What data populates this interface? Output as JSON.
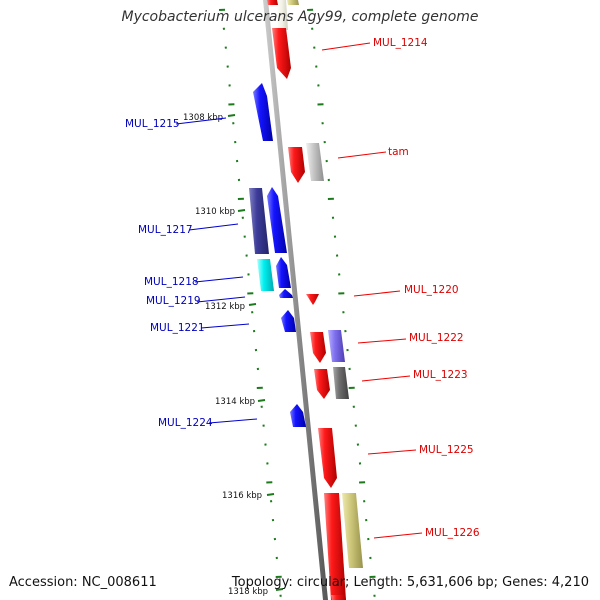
{
  "title": "Mycobacterium ulcerans Agy99, complete genome",
  "footer": {
    "accession": "Accession: NC_008611",
    "summary": "Topology: circular; Length: 5,631,606 bp; Genes: 4,210"
  },
  "colors": {
    "forward": "#ee0000",
    "reverse": "#0000ee",
    "backbone": "#8c8c8c",
    "tick": "#1c7a1c"
  },
  "scale": {
    "ticks": [
      {
        "label": "1308 kbp"
      },
      {
        "label": "1310 kbp"
      },
      {
        "label": "1312 kbp"
      },
      {
        "label": "1314 kbp"
      },
      {
        "label": "1316 kbp"
      },
      {
        "label": "1318 kbp"
      }
    ]
  },
  "labels": {
    "right": [
      "MUL_1214",
      "tam",
      "MUL_1220",
      "MUL_1222",
      "MUL_1223",
      "MUL_1225",
      "MUL_1226"
    ],
    "left": [
      "MUL_1215",
      "MUL_1217",
      "MUL_1218",
      "MUL_1219",
      "MUL_1221",
      "MUL_1224"
    ]
  }
}
